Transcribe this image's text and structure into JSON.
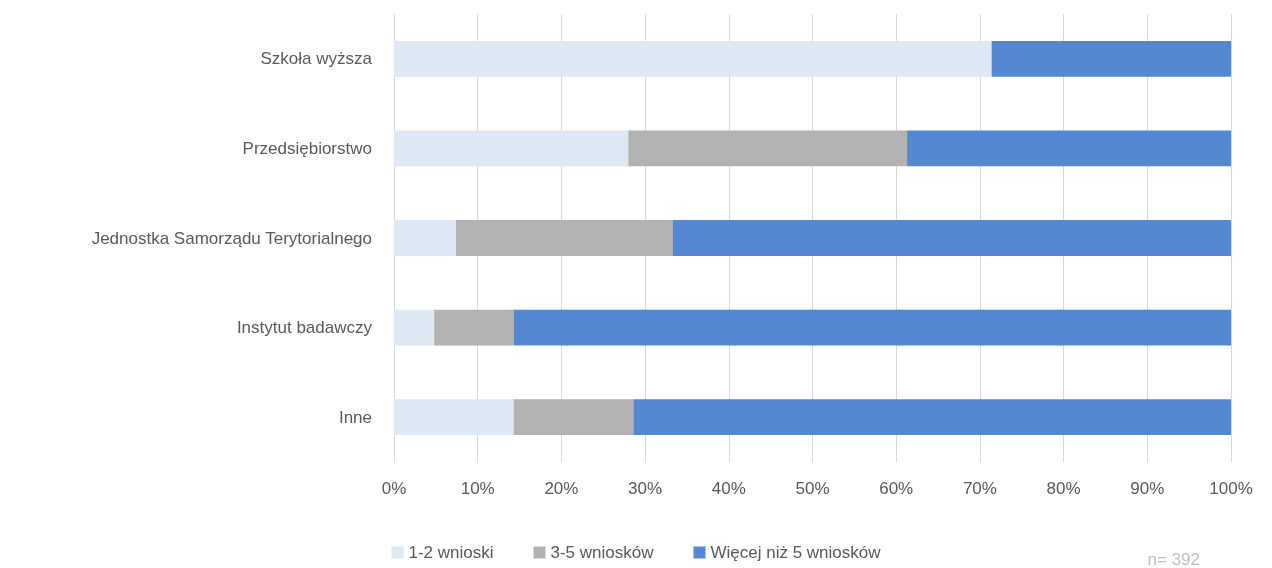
{
  "chart_data": {
    "type": "bar",
    "orientation": "horizontal",
    "stacked": true,
    "categories": [
      "Szkoła wyższa",
      "Przedsiębiorstwo",
      "Jednostka Samorządu Terytorialnego",
      "Instytut badawczy",
      "Inne"
    ],
    "series": [
      {
        "name": "1-2 wnioski",
        "color": "#dfe9f5",
        "values": [
          71.4,
          28,
          7.4,
          4.8,
          14.3
        ]
      },
      {
        "name": "3-5 wniosków",
        "color": "#b2b2b2",
        "values": [
          0,
          33.3,
          25.9,
          9.5,
          14.3
        ]
      },
      {
        "name": "Więcej niż 5 wniosków",
        "color": "#5588d2",
        "values": [
          28.6,
          38.7,
          66.7,
          85.7,
          71.4
        ]
      }
    ],
    "xlim": [
      0,
      100
    ],
    "xticks": [
      {
        "value": 0,
        "label": "0%"
      },
      {
        "value": 10,
        "label": "10%"
      },
      {
        "value": 20,
        "label": "20%"
      },
      {
        "value": 30,
        "label": "30%"
      },
      {
        "value": 40,
        "label": "40%"
      },
      {
        "value": 50,
        "label": "50%"
      },
      {
        "value": 60,
        "label": "60%"
      },
      {
        "value": 70,
        "label": "70%"
      },
      {
        "value": 80,
        "label": "80%"
      },
      {
        "value": 90,
        "label": "90%"
      },
      {
        "value": 100,
        "label": "100%"
      }
    ],
    "grid": "x",
    "legend": "bottom",
    "annotations": [
      "n= 392"
    ]
  }
}
